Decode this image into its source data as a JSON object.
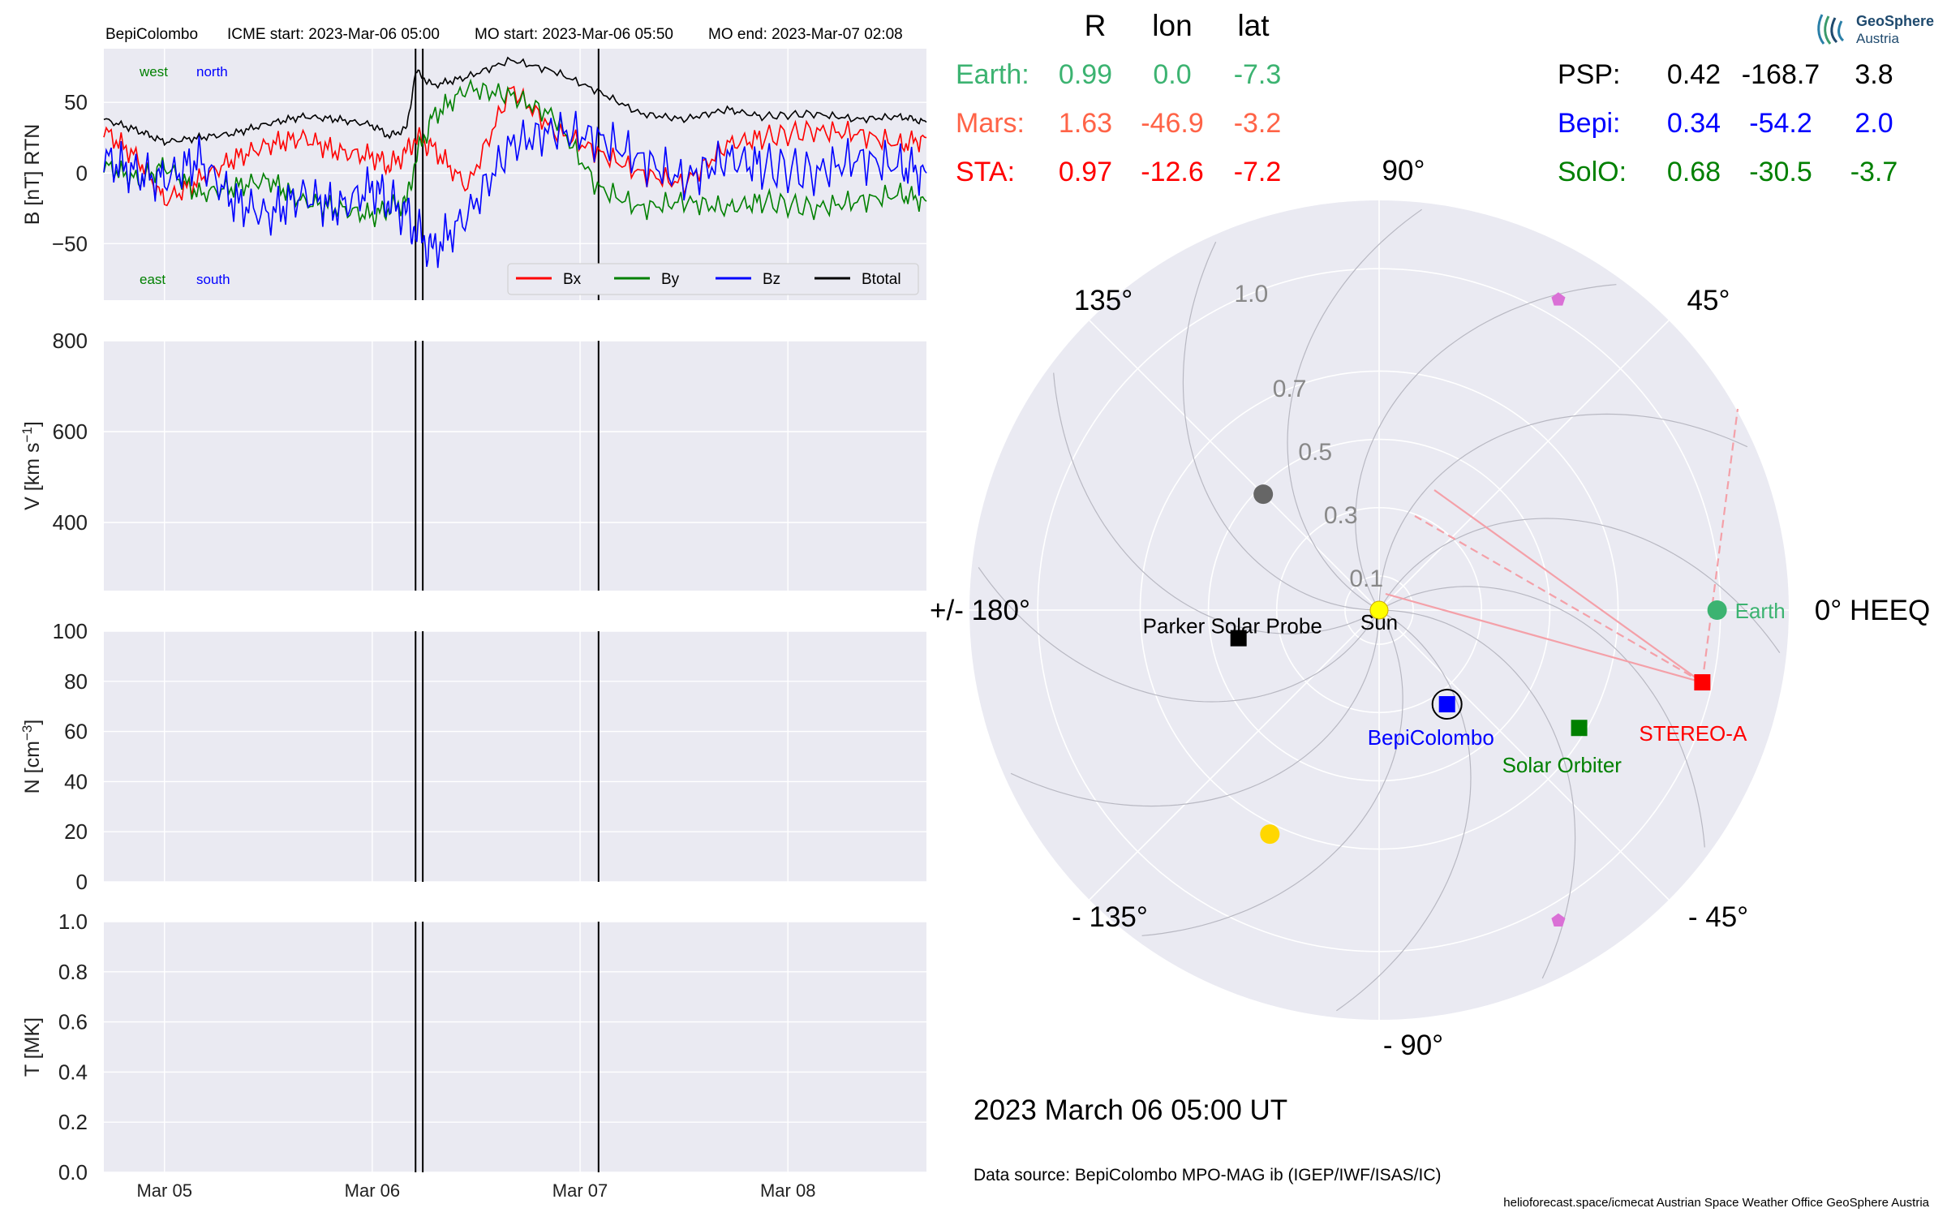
{
  "figure": {
    "header": {
      "spacecraft": "BepiColombo",
      "icme_start": "ICME start: 2023-Mar-06 05:00",
      "mo_start": "MO start: 2023-Mar-06 05:50",
      "mo_end": "MO end: 2023-Mar-07 02:08"
    },
    "date_label": "2023 March 06  05:00 UT",
    "data_source": "Data source: BepiColombo MPO-MAG ib (IGEP/IWF/ISAS/IC)",
    "footer": "helioforecast.space/icmecat   Austrian Space Weather Office   GeoSphere Austria",
    "logo": {
      "line1": "GeoSphere",
      "line2": "Austria"
    },
    "colors": {
      "bx": "#ff0000",
      "by": "#008000",
      "bz": "#0000ff",
      "btotal": "#000000",
      "earth": "#3cb371",
      "mars": "#ff6347",
      "sta": "#ff0000",
      "psp": "#000000",
      "bepi": "#0000ff",
      "solo": "#008000",
      "panel_bg": "#eaeaf2",
      "grid": "#ffffff"
    }
  },
  "positions_table": {
    "headers": [
      "R",
      "lon",
      "lat"
    ],
    "left_rows": [
      {
        "name": "Earth:",
        "r": "0.99",
        "lon": "0.0",
        "lat": "-7.3",
        "color": "#3cb371"
      },
      {
        "name": "Mars:",
        "r": "1.63",
        "lon": "-46.9",
        "lat": "-3.2",
        "color": "#ff6347"
      },
      {
        "name": "STA:",
        "r": "0.97",
        "lon": "-12.6",
        "lat": "-7.2",
        "color": "#ff0000"
      }
    ],
    "right_rows": [
      {
        "name": "PSP:",
        "r": "0.42",
        "lon": "-168.7",
        "lat": "3.8",
        "color": "#000000"
      },
      {
        "name": "Bepi:",
        "r": "0.34",
        "lon": "-54.2",
        "lat": "2.0",
        "color": "#0000ff"
      },
      {
        "name": "SolO:",
        "r": "0.68",
        "lon": "-30.5",
        "lat": "-3.7",
        "color": "#008000"
      }
    ]
  },
  "chart_data": [
    {
      "type": "line",
      "panel": "magnetic_field",
      "ylabel": "B [nT] RTN",
      "ylim": [
        -90,
        88
      ],
      "yticks": [
        -50,
        0,
        50
      ],
      "xlim_days": [
        "Mar 04 17:00",
        "Mar 08 14:00"
      ],
      "xticks": [
        "Mar 05",
        "Mar 06",
        "Mar 07",
        "Mar 08"
      ],
      "corner_labels": {
        "top_left": "west",
        "top_right": "north",
        "bottom_left": "east",
        "bottom_right": "south"
      },
      "vertical_lines": [
        "2023-03-06 05:00",
        "2023-03-06 05:50",
        "2023-03-07 02:08"
      ],
      "legend": [
        "Bx",
        "By",
        "Bz",
        "Btotal"
      ],
      "legend_position": "lower right",
      "x_hours_from_mar05": [
        -7,
        -3,
        0,
        4,
        8,
        12,
        16,
        20,
        24,
        26,
        28,
        29,
        31,
        35,
        40,
        45,
        50,
        55,
        60,
        65,
        69,
        75,
        80,
        85,
        88
      ],
      "series": [
        {
          "name": "Btotal",
          "values": [
            38,
            30,
            22,
            25,
            28,
            35,
            40,
            38,
            34,
            26,
            32,
            72,
            62,
            68,
            80,
            72,
            58,
            42,
            38,
            45,
            40,
            42,
            38,
            40,
            36
          ]
        },
        {
          "name": "Bx",
          "values": [
            30,
            10,
            -20,
            -5,
            10,
            20,
            25,
            15,
            12,
            5,
            15,
            25,
            18,
            -10,
            60,
            30,
            15,
            0,
            -8,
            20,
            25,
            30,
            28,
            20,
            25
          ]
        },
        {
          "name": "By",
          "values": [
            5,
            -5,
            5,
            -15,
            -10,
            -5,
            -20,
            -25,
            -30,
            -25,
            -20,
            10,
            40,
            60,
            55,
            40,
            -10,
            -25,
            -20,
            -25,
            -20,
            -25,
            -20,
            -15,
            -20
          ]
        },
        {
          "name": "Bz",
          "values": [
            10,
            0,
            -5,
            10,
            -20,
            -30,
            -15,
            -25,
            -10,
            -20,
            -30,
            -40,
            -55,
            -30,
            20,
            30,
            25,
            10,
            -5,
            10,
            5,
            0,
            10,
            5,
            0
          ]
        }
      ]
    },
    {
      "type": "line",
      "panel": "velocity",
      "ylabel": "V [km s$^{-1}$]",
      "ylim": [
        250,
        800
      ],
      "yticks": [
        400,
        600,
        800
      ],
      "series": []
    },
    {
      "type": "line",
      "panel": "density",
      "ylabel": "N [cm$^{-3}$]",
      "ylim": [
        0,
        100
      ],
      "yticks": [
        0,
        20,
        40,
        60,
        80,
        100
      ],
      "series": []
    },
    {
      "type": "line",
      "panel": "temperature",
      "ylabel": "T [MK]",
      "ylim": [
        0,
        1.0
      ],
      "yticks": [
        0.0,
        0.2,
        0.4,
        0.6,
        0.8,
        1.0
      ],
      "series": []
    },
    {
      "type": "scatter",
      "panel": "polar_positions",
      "projection": "polar",
      "r_ticks": [
        0.1,
        0.3,
        0.5,
        0.7,
        1.0
      ],
      "r_max": 1.2,
      "angle_labels": [
        "0° HEEQ",
        "45°",
        "90°",
        "135°",
        "+/- 180°",
        "- 135°",
        "- 90°",
        "- 45°"
      ],
      "bodies": [
        {
          "name": "Sun",
          "r": 0,
          "lon": 0,
          "color": "#ffff00",
          "marker": "circle",
          "label_color": "#000000"
        },
        {
          "name": "Earth",
          "r": 0.99,
          "lon": 0.0,
          "color": "#3cb371",
          "marker": "circle",
          "label_color": "#3cb371"
        },
        {
          "name": "STEREO-A",
          "r": 0.97,
          "lon": -12.6,
          "color": "#ff0000",
          "marker": "square",
          "label_color": "#ff0000"
        },
        {
          "name": "Solar Orbiter",
          "r": 0.68,
          "lon": -30.5,
          "color": "#008000",
          "marker": "square",
          "label_color": "#008000"
        },
        {
          "name": "BepiColombo",
          "r": 0.34,
          "lon": -54.2,
          "color": "#0000ff",
          "marker": "square",
          "label_color": "#0000ff"
        },
        {
          "name": "Parker Solar Probe",
          "r": 0.42,
          "lon": -168.7,
          "color": "#000000",
          "marker": "square",
          "label_color": "#000000"
        },
        {
          "name": "",
          "r": 0.48,
          "lon": 135,
          "color": "#666666",
          "marker": "circle"
        },
        {
          "name": "",
          "r": 0.73,
          "lon": -116,
          "color": "#ffd700",
          "marker": "circle"
        },
        {
          "name": "",
          "r": 1.05,
          "lon": 60,
          "color": "#da70d6",
          "marker": "pentagon"
        },
        {
          "name": "",
          "r": 1.05,
          "lon": -60,
          "color": "#da70d6",
          "marker": "pentagon"
        }
      ]
    }
  ]
}
